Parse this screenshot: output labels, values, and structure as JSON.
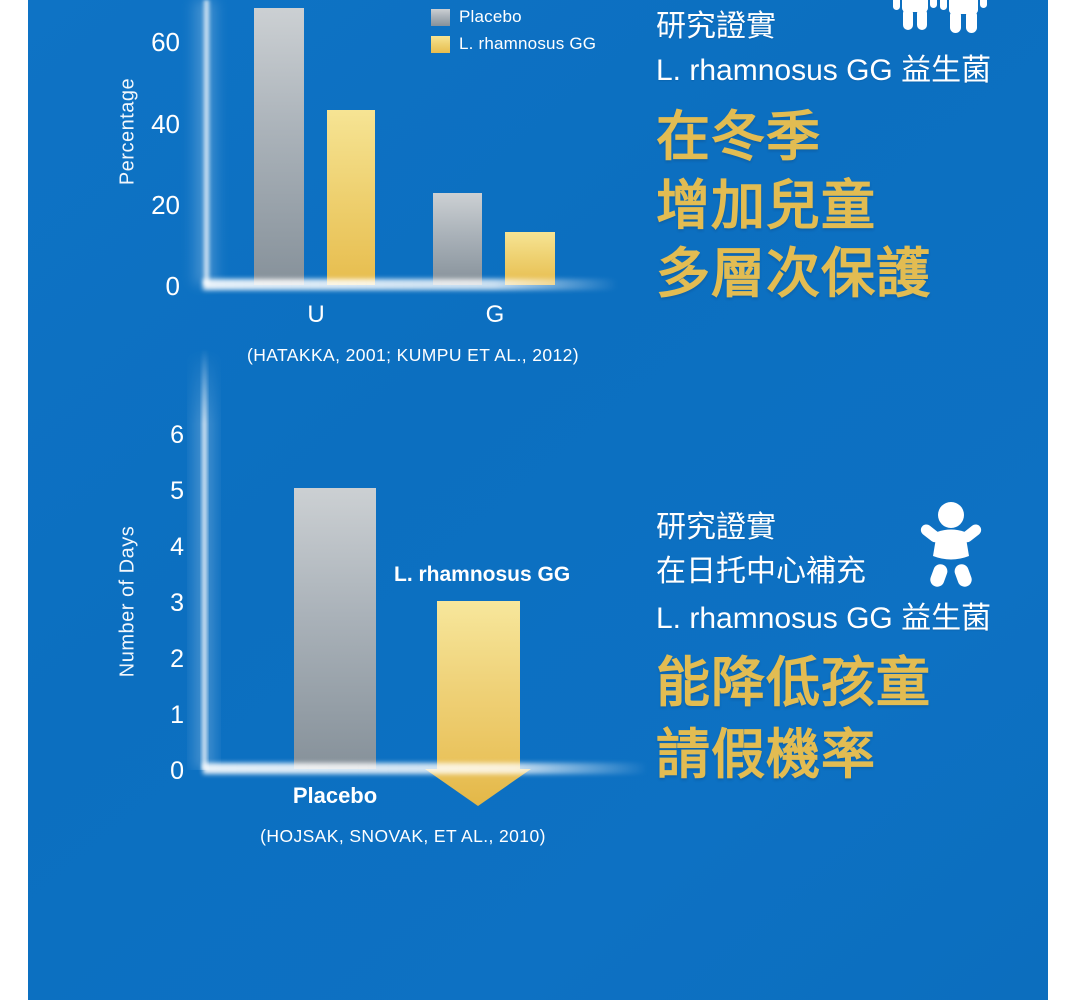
{
  "colors": {
    "page_bg": "#ffffff",
    "panel_blue": "#0d70c2",
    "gold_text": "#e2bc52",
    "bar_gray": "#9aa3ab",
    "bar_yellow": "#eecb65",
    "text_white": "#ffffff"
  },
  "chart_data": [
    {
      "type": "bar",
      "title": "",
      "ylabel": "Percentage",
      "xlabel": "",
      "categories": [
        "U",
        "G"
      ],
      "series": [
        {
          "name": "Placebo",
          "values": [
            68,
            22.5
          ]
        },
        {
          "name": "L. rhamnosus GG",
          "values": [
            43,
            13
          ]
        }
      ],
      "yticks": [
        0,
        20,
        40,
        60
      ],
      "ylim": [
        0,
        70
      ],
      "grid": false,
      "legend_position": "top-right",
      "citation": "(HATAKKA, 2001; KUMPU ET AL., 2012)",
      "note": "top of first Placebo bar is cropped by the top edge of the image"
    },
    {
      "type": "bar",
      "title": "",
      "ylabel": "Number of Days",
      "xlabel": "",
      "categories": [
        "Placebo",
        "L. rhamnosus GG"
      ],
      "values": [
        5,
        3
      ],
      "yticks": [
        0,
        1,
        2,
        3,
        4,
        5,
        6
      ],
      "ylim": [
        0,
        6.8
      ],
      "grid": false,
      "citation": "(HOJSAK, SNOVAK, ET AL., 2010)",
      "annotation": "L. rhamnosus GG value is drawn as a downward golden arrow starting at 3 and pointing below the 0 baseline"
    }
  ],
  "right_column": {
    "winter_block": {
      "intro_line1": "研究證實",
      "intro_line2": "L. rhamnosus GG 益生菌",
      "headline_line1": "在冬季",
      "headline_line2": "增加兒童",
      "headline_line3": "多層次保護",
      "icon": "children-icon"
    },
    "daycare_block": {
      "intro_line1": "研究證實",
      "intro_line2": "在日托中心補充",
      "intro_line3": "L. rhamnosus GG 益生菌",
      "headline_line1": "能降低孩童",
      "headline_line2": "請假機率",
      "icon": "baby-icon"
    }
  }
}
